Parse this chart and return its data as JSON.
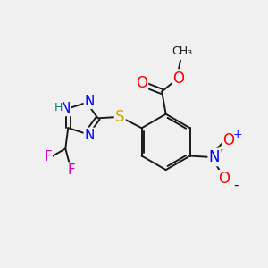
{
  "bg_color": "#f0f0f0",
  "bond_color": "#1a1a1a",
  "atom_colors": {
    "N": "#0000ff",
    "O": "#ff0000",
    "S": "#ccaa00",
    "F": "#cc00cc",
    "H": "#008080",
    "C": "#1a1a1a"
  },
  "font_size": 11,
  "dpi": 100,
  "lw": 1.4
}
